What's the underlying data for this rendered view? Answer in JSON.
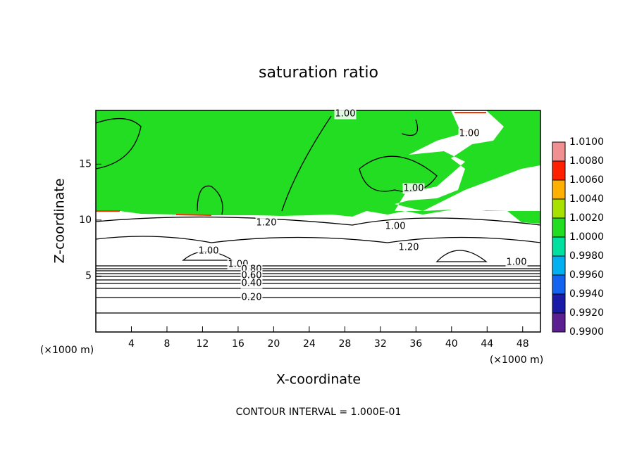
{
  "chart_data": {
    "type": "contour",
    "title": "saturation ratio",
    "x_label": "X-coordinate",
    "y_label": "Z-coordinate",
    "x_unit": "(×1000 m)",
    "footnote": "CONTOUR INTERVAL = 1.000E-01",
    "xlim": [
      0,
      50
    ],
    "xticks": [
      4,
      8,
      12,
      16,
      20,
      24,
      28,
      32,
      36,
      40,
      44,
      48
    ],
    "ylim": [
      0,
      19.8
    ],
    "yticks": [
      5,
      10,
      15
    ],
    "colorbar": {
      "ticks": [
        {
          "value": 0.99,
          "label": "0.9900"
        },
        {
          "value": 0.992,
          "label": "0.9920"
        },
        {
          "value": 0.994,
          "label": "0.9940"
        },
        {
          "value": 0.996,
          "label": "0.9960"
        },
        {
          "value": 0.998,
          "label": "0.9980"
        },
        {
          "value": 1.0,
          "label": "1.0000"
        },
        {
          "value": 1.002,
          "label": "1.0020"
        },
        {
          "value": 1.004,
          "label": "1.0040"
        },
        {
          "value": 1.006,
          "label": "1.0060"
        },
        {
          "value": 1.008,
          "label": "1.0080"
        },
        {
          "value": 1.01,
          "label": "1.0100"
        }
      ],
      "colors": [
        "#5b1f8f",
        "#1a1aa8",
        "#1463f0",
        "#00b0f0",
        "#00e0a0",
        "#22dd22",
        "#a8e000",
        "#ffb000",
        "#ff2000",
        "#f09090"
      ]
    },
    "contour_labels": [
      {
        "value": 1,
        "label": "1.00"
      },
      {
        "value": 1,
        "label": "1.00"
      },
      {
        "value": 1,
        "label": "1.00"
      },
      {
        "value": 1,
        "label": "1.00"
      },
      {
        "value": 1,
        "label": "1.00"
      },
      {
        "value": 1,
        "label": "1.00"
      },
      {
        "value": 1,
        "label": "1.00"
      },
      {
        "value": 1.2,
        "label": "1.20"
      },
      {
        "value": 1.2,
        "label": "1.20"
      },
      {
        "value": 0.8,
        "label": "0.80"
      },
      {
        "value": 0.6,
        "label": "0.60"
      },
      {
        "value": 0.4,
        "label": "0.40"
      },
      {
        "value": 0.2,
        "label": "0.20"
      }
    ]
  }
}
